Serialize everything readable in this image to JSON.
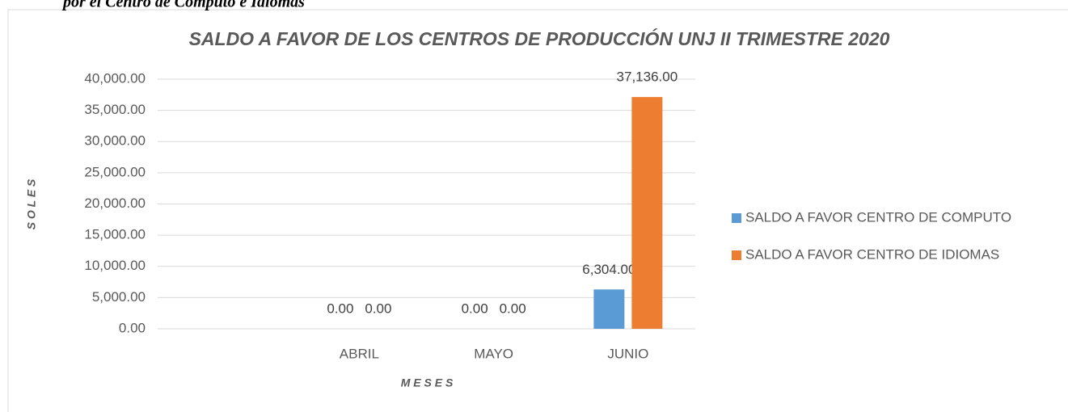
{
  "caption": "por el Centro de Computo e Idiomas",
  "chart_data": {
    "type": "bar",
    "title": "SALDO A FAVOR DE LOS CENTROS DE PRODUCCIÓN UNJ II TRIMESTRE 2020",
    "x_label": "M E S E S",
    "y_label": "S O L E S",
    "categories": [
      null,
      "ABRIL",
      "MAYO",
      "JUNIO"
    ],
    "series": [
      {
        "name": "SALDO A FAVOR CENTRO DE COMPUTO",
        "color": "#5b9bd5",
        "values": [
          null,
          0,
          0,
          6304
        ],
        "value_labels": [
          null,
          "0.00",
          "0.00",
          "6,304.00"
        ]
      },
      {
        "name": "SALDO A FAVOR CENTRO DE IDIOMAS",
        "color": "#ed7d31",
        "values": [
          null,
          0,
          0,
          37136
        ],
        "value_labels": [
          null,
          "0.00",
          "0.00",
          "37,136.00"
        ]
      }
    ],
    "ylim": [
      0,
      40000
    ],
    "yticks": [
      {
        "value": 0,
        "label": "0.00"
      },
      {
        "value": 5000,
        "label": "5,000.00"
      },
      {
        "value": 10000,
        "label": "10,000.00"
      },
      {
        "value": 15000,
        "label": "15,000.00"
      },
      {
        "value": 20000,
        "label": "20,000.00"
      },
      {
        "value": 25000,
        "label": "25,000.00"
      },
      {
        "value": 30000,
        "label": "30,000.00"
      },
      {
        "value": 35000,
        "label": "35,000.00"
      },
      {
        "value": 40000,
        "label": "40,000.00"
      }
    ],
    "grid": true,
    "legend": "right"
  }
}
